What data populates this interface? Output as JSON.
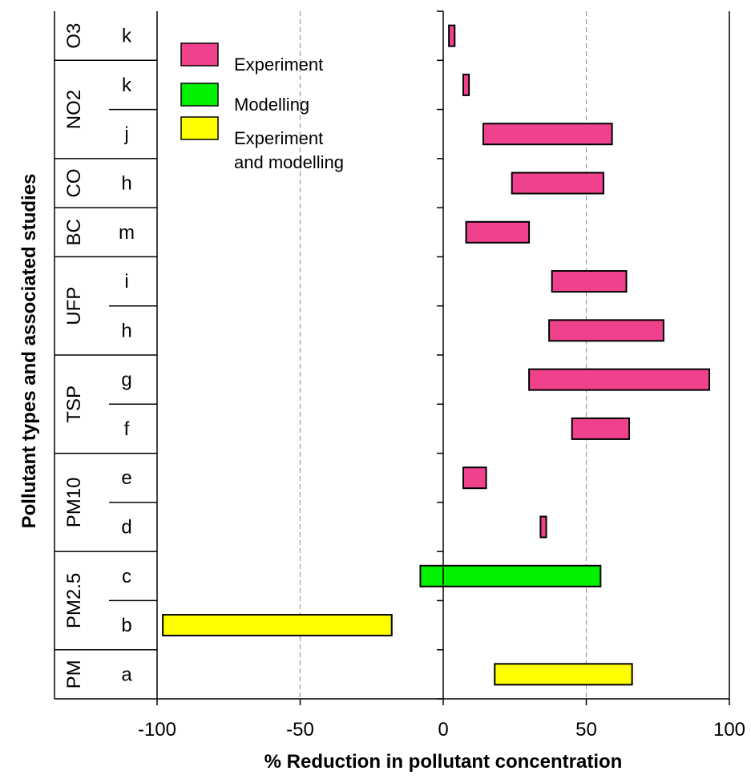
{
  "chart_data": {
    "type": "bar",
    "subtype": "floating-range-horizontal",
    "xlabel": "% Reduction in pollutant concentration",
    "ylabel": "Pollutant types  and associated studies",
    "xlim": [
      -100,
      100
    ],
    "xticks": [
      -100,
      -50,
      0,
      50,
      100
    ],
    "grid": "vertical dashed at -50 and 50",
    "legend": {
      "placement": "top-left",
      "entries": [
        {
          "key": "experiment",
          "lines": [
            "Experiment"
          ],
          "color": "#f0418c"
        },
        {
          "key": "modelling",
          "lines": [
            "Modelling"
          ],
          "color": "#00f000"
        },
        {
          "key": "both",
          "lines": [
            "Experiment",
            "and modelling"
          ],
          "color": "#ffff00"
        }
      ]
    },
    "rows": [
      {
        "study": "k",
        "pollutant": "O3",
        "start": 2,
        "end": 4,
        "method": "experiment"
      },
      {
        "study": "k",
        "pollutant": "NO2",
        "start": 7,
        "end": 9,
        "method": "experiment"
      },
      {
        "study": "j",
        "pollutant": "NO2",
        "start": 14,
        "end": 59,
        "method": "experiment"
      },
      {
        "study": "h",
        "pollutant": "CO",
        "start": 24,
        "end": 56,
        "method": "experiment"
      },
      {
        "study": "m",
        "pollutant": "BC",
        "start": 8,
        "end": 30,
        "method": "experiment"
      },
      {
        "study": "i",
        "pollutant": "UFP",
        "start": 38,
        "end": 64,
        "method": "experiment"
      },
      {
        "study": "h",
        "pollutant": "UFP",
        "start": 37,
        "end": 77,
        "method": "experiment"
      },
      {
        "study": "g",
        "pollutant": "TSP",
        "start": 30,
        "end": 93,
        "method": "experiment"
      },
      {
        "study": "f",
        "pollutant": "TSP",
        "start": 45,
        "end": 65,
        "method": "experiment"
      },
      {
        "study": "e",
        "pollutant": "PM10",
        "start": 7,
        "end": 15,
        "method": "experiment"
      },
      {
        "study": "d",
        "pollutant": "PM10",
        "start": 34,
        "end": 36,
        "method": "experiment"
      },
      {
        "study": "c",
        "pollutant": "PM2.5",
        "start": -8,
        "end": 55,
        "method": "modelling"
      },
      {
        "study": "b",
        "pollutant": "PM2.5",
        "start": -98,
        "end": -18,
        "method": "both"
      },
      {
        "study": "a",
        "pollutant": "PM",
        "start": 18,
        "end": 66,
        "method": "both"
      }
    ],
    "groups": [
      "O3",
      "NO2",
      "CO",
      "BC",
      "UFP",
      "TSP",
      "PM10",
      "PM2.5",
      "PM"
    ]
  }
}
